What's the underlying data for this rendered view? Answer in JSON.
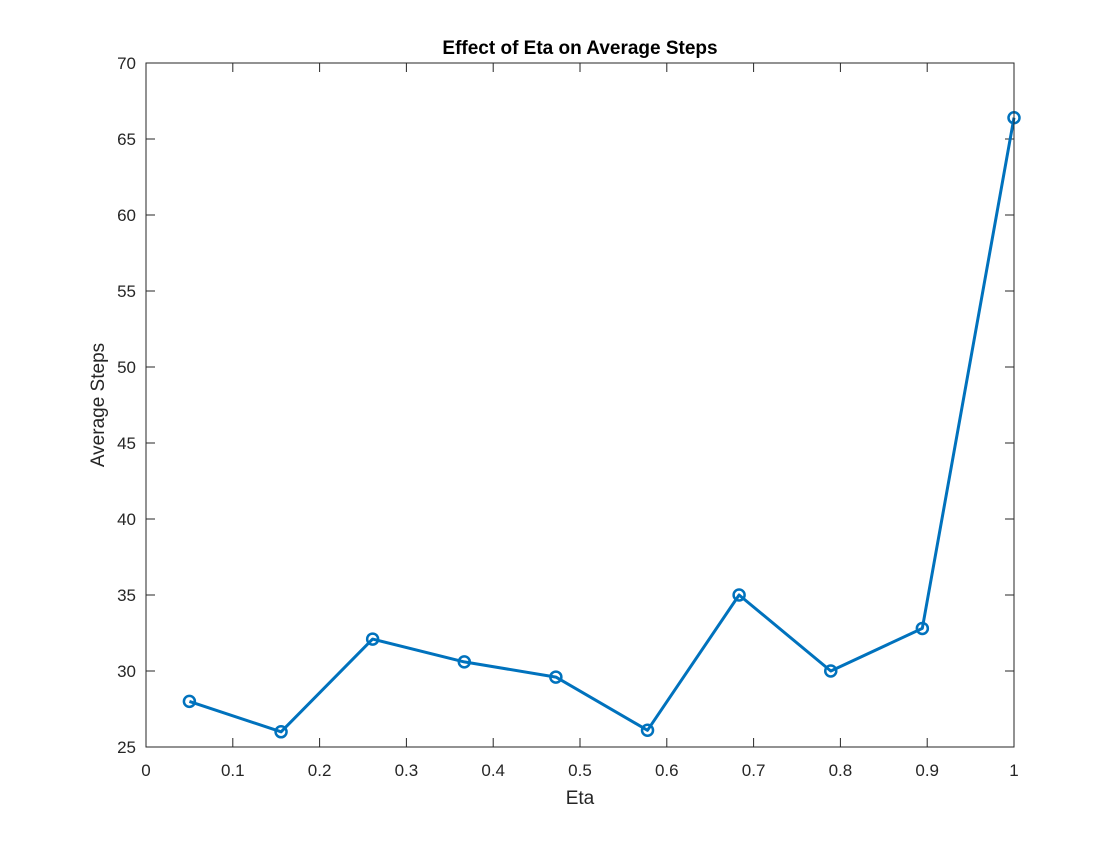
{
  "chart_data": {
    "type": "line",
    "title": "Effect of Eta on Average Steps",
    "xlabel": "Eta",
    "ylabel": "Average Steps",
    "xlim": [
      0,
      1
    ],
    "ylim": [
      25,
      70
    ],
    "xticks": [
      0,
      0.1,
      0.2,
      0.3,
      0.4,
      0.5,
      0.6,
      0.7,
      0.8,
      0.9,
      1
    ],
    "xtick_labels": [
      "0",
      "0.1",
      "0.2",
      "0.3",
      "0.4",
      "0.5",
      "0.6",
      "0.7",
      "0.8",
      "0.9",
      "1"
    ],
    "yticks": [
      25,
      30,
      35,
      40,
      45,
      50,
      55,
      60,
      65,
      70
    ],
    "ytick_labels": [
      "25",
      "30",
      "35",
      "40",
      "45",
      "50",
      "55",
      "60",
      "65",
      "70"
    ],
    "grid": false,
    "legend": false,
    "marker": "circle",
    "series": [
      {
        "color": "#0072BD",
        "x": [
          0.05,
          0.1556,
          0.2611,
          0.3667,
          0.4722,
          0.5778,
          0.6833,
          0.7889,
          0.8944,
          1.0
        ],
        "y": [
          28.0,
          26.0,
          32.1,
          30.6,
          29.6,
          26.1,
          35.0,
          30.0,
          32.8,
          66.4
        ]
      }
    ]
  }
}
